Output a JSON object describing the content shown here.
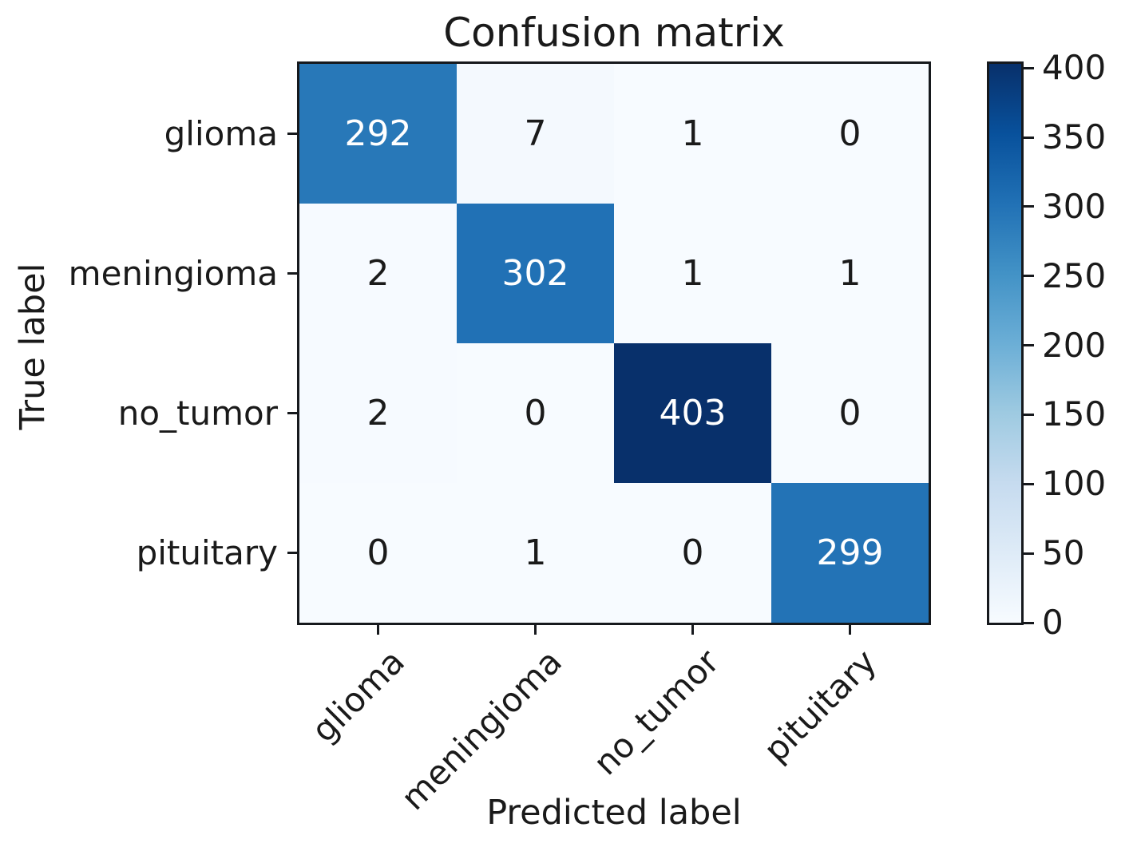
{
  "figure": {
    "background": "#ffffff",
    "text_color": "#1a1a1a"
  },
  "chart_data": {
    "type": "heatmap",
    "title": "Confusion matrix",
    "xlabel": "Predicted label",
    "ylabel": "True label",
    "x_categories": [
      "glioma",
      "meningioma",
      "no_tumor",
      "pituitary"
    ],
    "y_categories": [
      "glioma",
      "meningioma",
      "no_tumor",
      "pituitary"
    ],
    "rows": [
      [
        292,
        7,
        1,
        0
      ],
      [
        2,
        302,
        1,
        1
      ],
      [
        2,
        0,
        403,
        0
      ],
      [
        0,
        1,
        0,
        299
      ]
    ],
    "vmin": 0,
    "vmax": 403,
    "colorbar_ticks": [
      0,
      50,
      100,
      150,
      200,
      250,
      300,
      350,
      400
    ],
    "colormap_name": "Blues",
    "colormap_stops": [
      "#f7fbff",
      "#deebf7",
      "#c6dbef",
      "#9ecae1",
      "#6baed6",
      "#4292c6",
      "#2171b5",
      "#08519c",
      "#08306b"
    ],
    "annotation_colors": {
      "light": "#ffffff",
      "dark": "#1a1a1a"
    },
    "legend_position": "right-colorbar",
    "grid": false,
    "x_tick_rotation_deg": 45
  }
}
